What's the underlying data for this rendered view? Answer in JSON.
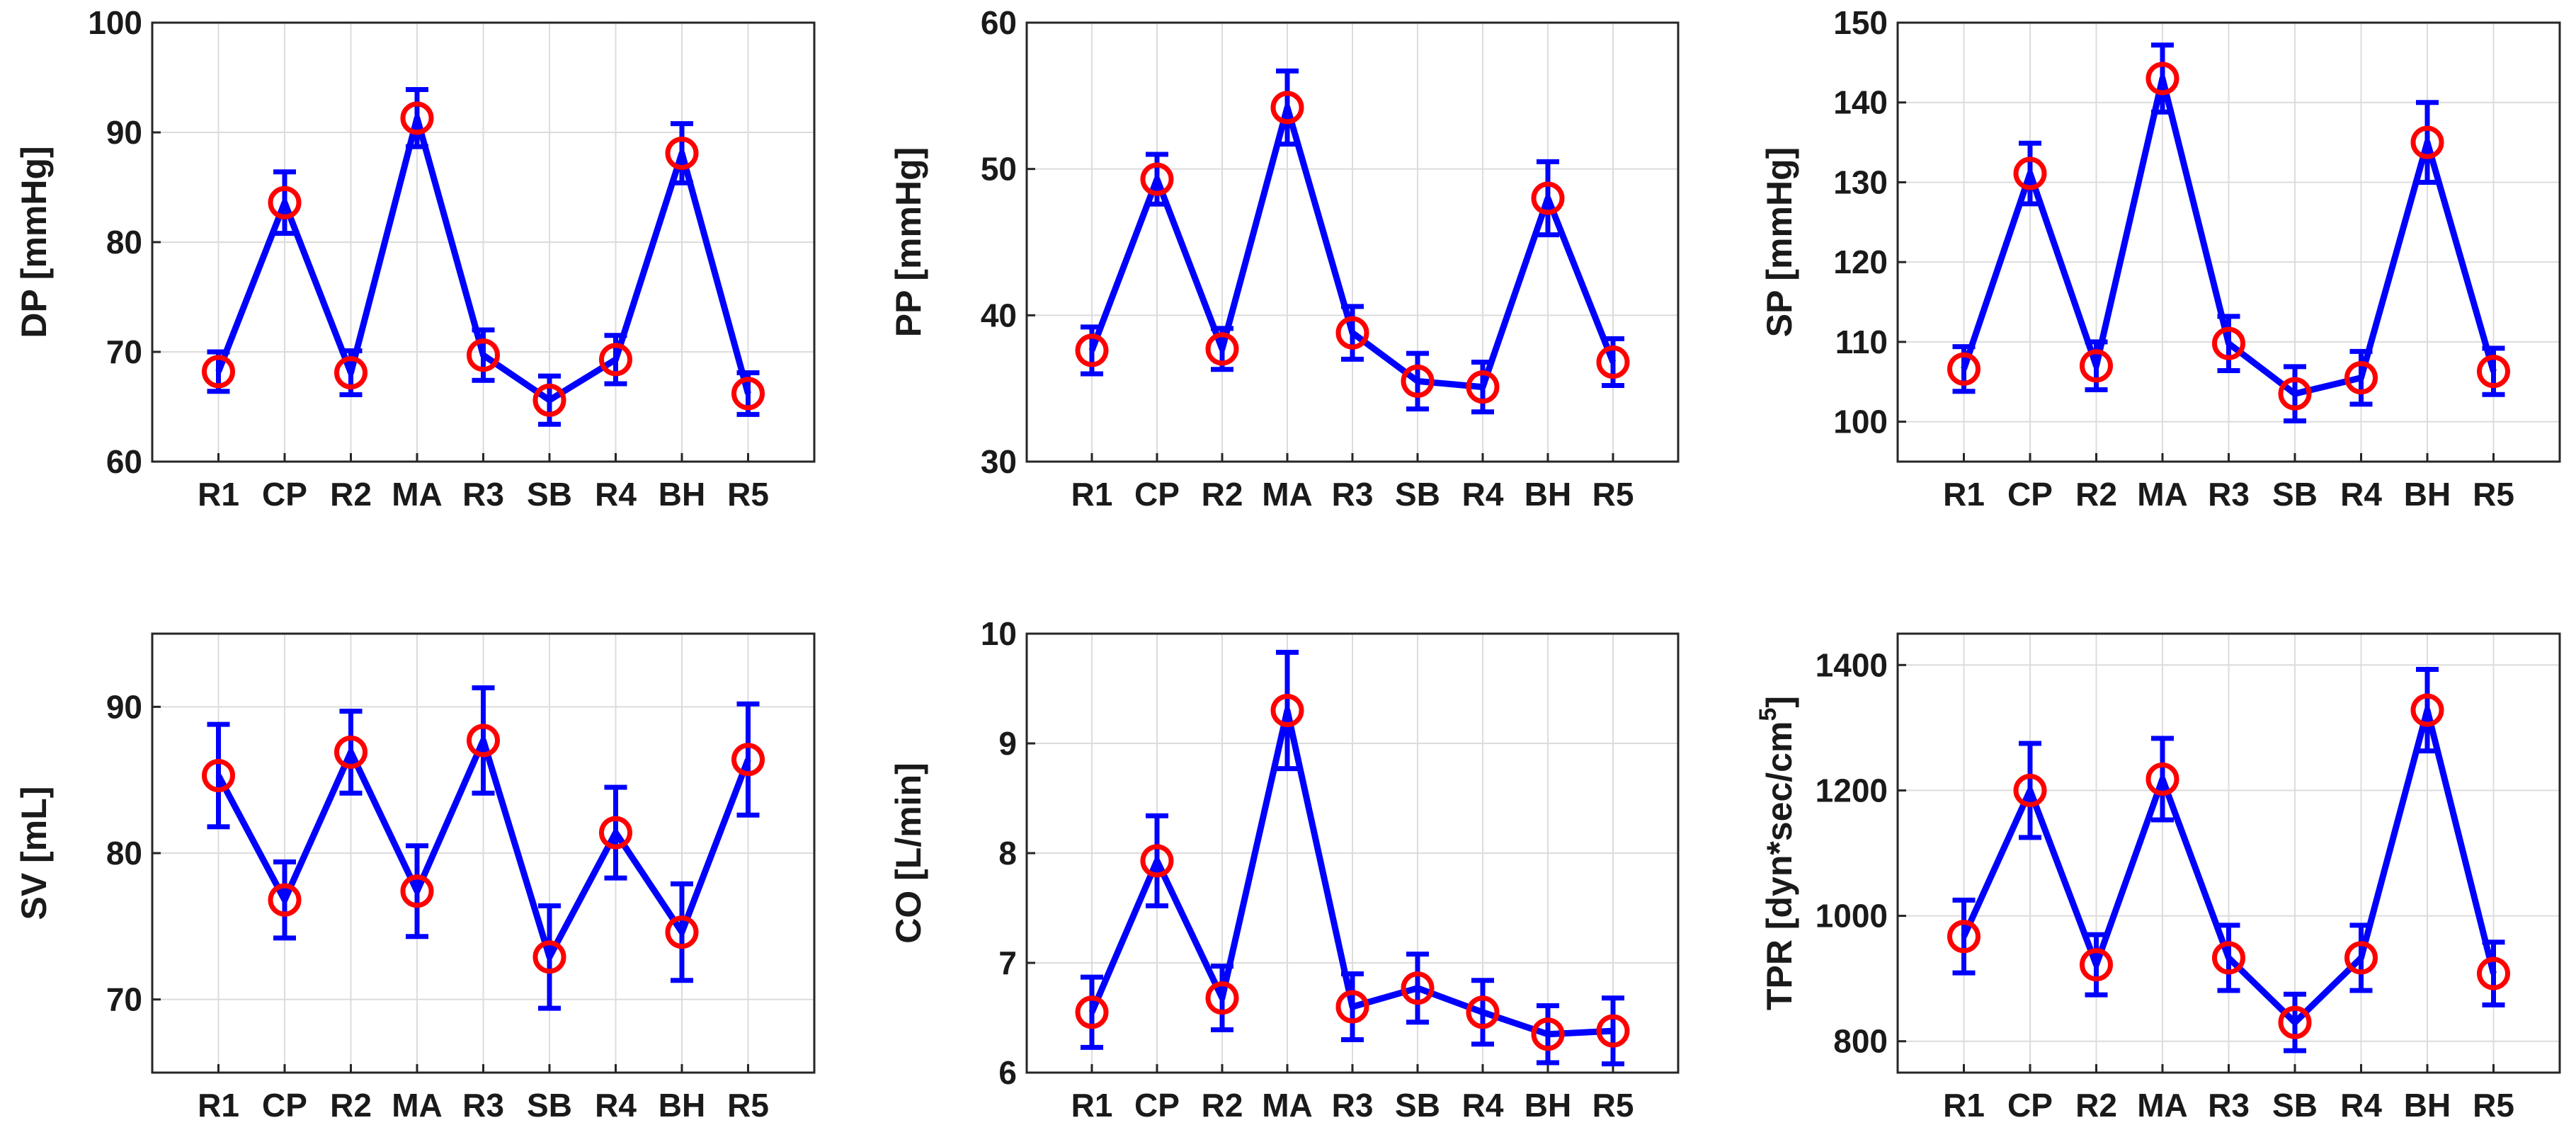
{
  "chart_data": [
    {
      "type": "line",
      "title": "",
      "xlabel": "",
      "ylabel": "DP [mmHg]",
      "categories": [
        "R1",
        "CP",
        "R2",
        "MA",
        "R3",
        "SB",
        "R4",
        "BH",
        "R5"
      ],
      "ylim": [
        60,
        100
      ],
      "yticks": [
        60,
        70,
        80,
        90,
        100
      ],
      "grid": true,
      "series": [
        {
          "name": "DP",
          "values": [
            68.2,
            83.6,
            68.1,
            91.3,
            69.7,
            65.6,
            69.3,
            88.1,
            66.2
          ],
          "error": [
            1.8,
            2.8,
            2.0,
            2.6,
            2.3,
            2.2,
            2.2,
            2.7,
            1.9
          ]
        }
      ]
    },
    {
      "type": "line",
      "title": "",
      "xlabel": "",
      "ylabel": "PP [mmHg]",
      "categories": [
        "R1",
        "CP",
        "R2",
        "MA",
        "R3",
        "SB",
        "R4",
        "BH",
        "R5"
      ],
      "ylim": [
        30,
        60
      ],
      "yticks": [
        30,
        40,
        50,
        60
      ],
      "grid": true,
      "series": [
        {
          "name": "PP",
          "values": [
            37.6,
            49.3,
            37.7,
            54.2,
            38.8,
            35.5,
            35.1,
            48.0,
            36.8
          ],
          "error": [
            1.6,
            1.7,
            1.4,
            2.5,
            1.8,
            1.9,
            1.7,
            2.5,
            1.6
          ]
        }
      ]
    },
    {
      "type": "line",
      "title": "",
      "xlabel": "",
      "ylabel": "SP [mmHg]",
      "categories": [
        "R1",
        "CP",
        "R2",
        "MA",
        "R3",
        "SB",
        "R4",
        "BH",
        "R5"
      ],
      "ylim": [
        95,
        150
      ],
      "yticks": [
        100,
        110,
        120,
        130,
        140,
        150
      ],
      "grid": true,
      "series": [
        {
          "name": "SP",
          "values": [
            106.6,
            131.1,
            107.0,
            143.0,
            109.8,
            103.5,
            105.5,
            135.0,
            106.3
          ],
          "error": [
            2.8,
            3.8,
            3.0,
            4.2,
            3.4,
            3.4,
            3.3,
            5.0,
            2.9
          ]
        }
      ]
    },
    {
      "type": "line",
      "title": "",
      "xlabel": "",
      "ylabel": "SV [mL]",
      "categories": [
        "R1",
        "CP",
        "R2",
        "MA",
        "R3",
        "SB",
        "R4",
        "BH",
        "R5"
      ],
      "ylim": [
        65,
        95
      ],
      "yticks": [
        70,
        80,
        90
      ],
      "grid": true,
      "series": [
        {
          "name": "SV",
          "values": [
            85.3,
            76.8,
            86.9,
            77.4,
            87.7,
            72.9,
            81.4,
            74.6,
            86.4
          ],
          "error": [
            3.5,
            2.6,
            2.8,
            3.1,
            3.6,
            3.5,
            3.1,
            3.3,
            3.8
          ]
        }
      ]
    },
    {
      "type": "line",
      "title": "",
      "xlabel": "",
      "ylabel": "CO [L/min]",
      "categories": [
        "R1",
        "CP",
        "R2",
        "MA",
        "R3",
        "SB",
        "R4",
        "BH",
        "R5"
      ],
      "ylim": [
        6,
        10
      ],
      "yticks": [
        6,
        7,
        8,
        9,
        10
      ],
      "grid": true,
      "series": [
        {
          "name": "CO",
          "values": [
            6.55,
            7.93,
            6.68,
            9.3,
            6.6,
            6.77,
            6.55,
            6.35,
            6.38
          ],
          "error": [
            0.32,
            0.41,
            0.29,
            0.53,
            0.3,
            0.31,
            0.29,
            0.26,
            0.3
          ]
        }
      ]
    },
    {
      "type": "line",
      "title": "",
      "xlabel": "",
      "ylabel": "TPR [dyn*sec/cm",
      "ylabel_superscript": "5",
      "ylabel_suffix": "]",
      "categories": [
        "R1",
        "CP",
        "R2",
        "MA",
        "R3",
        "SB",
        "R4",
        "BH",
        "R5"
      ],
      "ylim": [
        750,
        1450
      ],
      "yticks": [
        800,
        1000,
        1200,
        1400
      ],
      "grid": true,
      "series": [
        {
          "name": "TPR",
          "values": [
            967,
            1200,
            922,
            1218,
            933,
            830,
            933,
            1328,
            908
          ],
          "error": [
            58,
            75,
            48,
            65,
            52,
            45,
            52,
            65,
            50
          ]
        }
      ]
    }
  ],
  "colors": {
    "line": "#0000ff",
    "marker": "#ff0000",
    "error_bar": "#0000ff",
    "grid": "#dcdcdc",
    "axes": "#262626",
    "text": "#1a1a1a"
  }
}
